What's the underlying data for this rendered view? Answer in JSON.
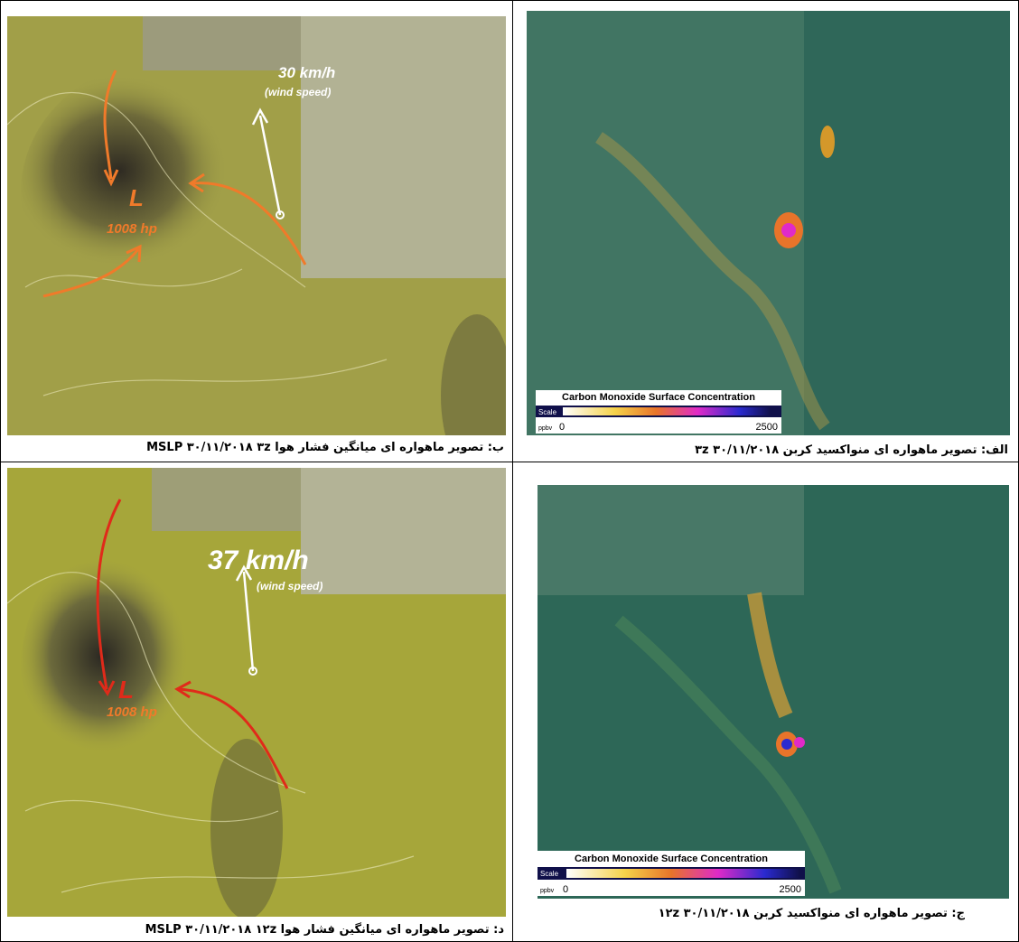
{
  "panels": [
    {
      "caption": "ب: تصویر ماهواره ای میانگین فشار هوا MSLP ۳۰/۱۱/۲۰۱۸ ۳z",
      "speed": "30 km/h",
      "speed_note": "(wind speed)",
      "low": "L",
      "pressure": "1008 hp"
    },
    {
      "caption": "الف: تصویر ماهواره ای منواکسید کربن ۳۰/۱۱/۲۰۱۸ ۳z",
      "legend": {
        "title": "Carbon Monoxide Surface Concentration",
        "scale": "Scale",
        "unit": "ppbv",
        "min": "0",
        "max": "2500"
      }
    },
    {
      "caption": "د: تصویر ماهواره ای میانگین فشار هوا MSLP ۳۰/۱۱/۲۰۱۸ ۱۲z",
      "speed": "37 km/h",
      "speed_note": "(wind speed)",
      "low": "L",
      "pressure": "1008 hp"
    },
    {
      "caption": "ج: تصویر ماهواره ای منواکسید کربن ۳۰/۱۱/۲۰۱۸ ۱۲z",
      "legend": {
        "title": "Carbon Monoxide Surface Concentration",
        "scale": "Scale",
        "unit": "ppbv",
        "min": "0",
        "max": "2500"
      }
    }
  ]
}
